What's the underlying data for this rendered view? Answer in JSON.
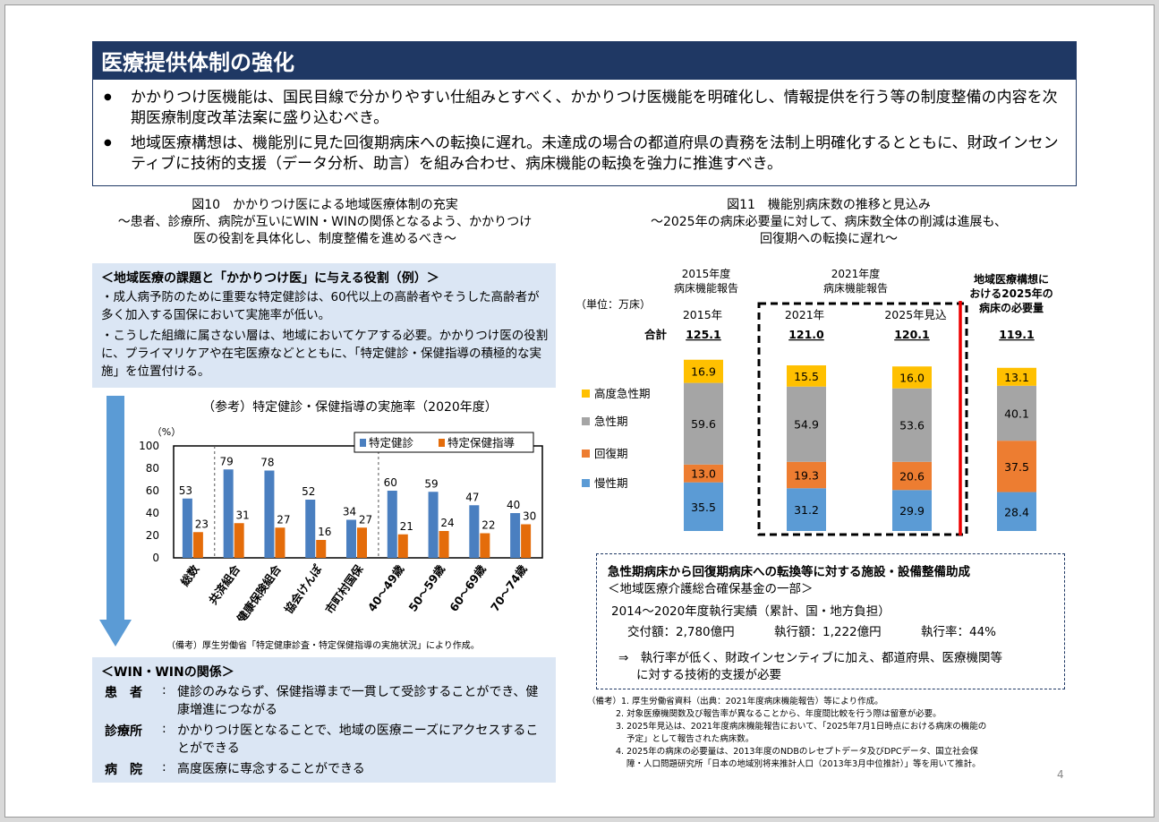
{
  "title": "医療提供体制の強化",
  "summary": [
    "かかりつけ医機能は、国民目線で分かりやすい仕組みとすべく、かかりつけ医機能を明確化し、情報提供を行う等の制度整備の内容を次期医療制度改革法案に盛り込むべき。",
    "地域医療構想は、機能別に見た回復期病床への転換に遅れ。未達成の場合の都道府県の責務を法制上明確化するとともに、財政インセンティブに技術的支援（データ分析、助言）を組み合わせ、病床機能の転換を強力に推進すべき。"
  ],
  "fig10": {
    "title": "図10　かかりつけ医による地域医療体制の充実",
    "subtitle1": "～患者、診療所、病院が互いにWIN・WINの関係となるよう、かかりつけ",
    "subtitle2": "医の役割を具体化し、制度整備を進めるべき～",
    "box1_heading": "＜地域医療の課題と「かかりつけ医」に与える役割（例）＞",
    "box1_p1": "・成人病予防のために重要な特定健診は、60代以上の高齢者やそうした高齢者が多く加入する国保において実施率が低い。",
    "box1_p2": "・こうした組織に属さない層は、地域においてケアする必要。かかりつけ医の役割に、プライマリケアや在宅医療などとともに、「特定健診・保健指導の積極的な実施」を位置付ける。",
    "chart_title": "（参考）特定健診・保健指導の実施率（2020年度）",
    "source": "（備考）厚生労働省「特定健康診査・特定保健指導の実施状況」により作成。",
    "box2_heading": "＜WIN・WINの関係＞",
    "box2_rows": [
      {
        "label": "患　者",
        "text": "健診のみならず、保健指導まで一貫して受診することができ、健康増進につながる"
      },
      {
        "label": "診療所",
        "text": "かかりつけ医となることで、地域の医療ニーズにアクセスすることができる"
      },
      {
        "label": "病　院",
        "text": "高度医療に専念することができる"
      }
    ]
  },
  "fig11": {
    "title": "図11　機能別病床数の推移と見込み",
    "subtitle1": "～2025年の病床必要量に対して、病床数全体の削減は進展も、",
    "subtitle2": "回復期への転換に遅れ～",
    "unit": "（単位：万床）",
    "total_label": "合計",
    "group1_label1": "2015年度",
    "group1_label2": "病床機能報告",
    "group2_label1": "2021年度",
    "group2_label2": "病床機能報告",
    "group3_label1": "地域医療構想に",
    "group3_label2": "おける2025年の",
    "group3_label3": "病床の必要量",
    "aid_title": "急性期病床から回復期病床への転換等に対する施設・設備整備助成",
    "aid_sub": "＜地域医療介護総合確保基金の一部＞",
    "aid_line1": "2014～2020年度執行実績（累計、国・地方負担）",
    "aid_delivered": "交付額：2,780億円",
    "aid_executed": "執行額：1,222億円",
    "aid_rate": "執行率：44%",
    "aid_conclusion1": "⇒　執行率が低く、財政インセンティブに加え、都道府県、医療機関等",
    "aid_conclusion2": "に対する技術的支援が必要",
    "notes": [
      "（備考）1. 厚生労働省資料（出典：2021年度病床機能報告）等により作成。",
      "2. 対象医療機関数及び報告率が異なることから、年度間比較を行う際は留意が必要。",
      "3. 2025年見込は、2021年度病床機能報告において、「2025年7月1日時点における病床の機能の",
      "予定」として報告された病床数。",
      "4. 2025年の病床の必要量は、2013年度のNDBのレセプトデータ及びDPCデータ、国立社会保",
      "障・人口問題研究所「日本の地域別将来推計人口（2013年3月中位推計）」等を用いて推計。"
    ]
  },
  "page_number": "4",
  "chart_data": [
    {
      "type": "bar",
      "title": "（参考）特定健診・保健指導の実施率（2020年度）",
      "ylabel": "（%）",
      "ylim": [
        0,
        100
      ],
      "yticks": [
        0,
        20,
        40,
        60,
        80,
        100
      ],
      "categories": [
        "総数",
        "共済組合",
        "健康保険組合",
        "協会けんぽ",
        "市町村国保",
        "40～49歳",
        "50～59歳",
        "60～69歳",
        "70～74歳"
      ],
      "series": [
        {
          "name": "特定健診",
          "color": "#4a7fc0",
          "values": [
            53,
            79,
            78,
            52,
            34,
            60,
            59,
            47,
            40
          ]
        },
        {
          "name": "特定保健指導",
          "color": "#e46c0a",
          "values": [
            23,
            31,
            27,
            16,
            27,
            21,
            24,
            22,
            30
          ]
        }
      ],
      "legend": "top-right"
    },
    {
      "type": "bar",
      "stacked": true,
      "title": "図11　機能別病床数の推移と見込み",
      "ylabel": "（単位：万床）",
      "categories": [
        "2015年",
        "2021年",
        "2025年見込",
        ""
      ],
      "totals": [
        "125.1",
        "121.0",
        "120.1",
        "119.1"
      ],
      "series": [
        {
          "name": "慢性期",
          "color": "#5b9bd5",
          "values": [
            35.5,
            31.2,
            29.9,
            28.4
          ]
        },
        {
          "name": "回復期",
          "color": "#ed7d31",
          "values": [
            13.0,
            19.3,
            20.6,
            37.5
          ]
        },
        {
          "name": "急性期",
          "color": "#a5a5a5",
          "values": [
            59.6,
            54.9,
            53.6,
            40.1
          ]
        },
        {
          "name": "高度急性期",
          "color": "#ffc000",
          "values": [
            16.9,
            15.5,
            16.0,
            13.1
          ]
        }
      ],
      "legend": "left"
    }
  ]
}
